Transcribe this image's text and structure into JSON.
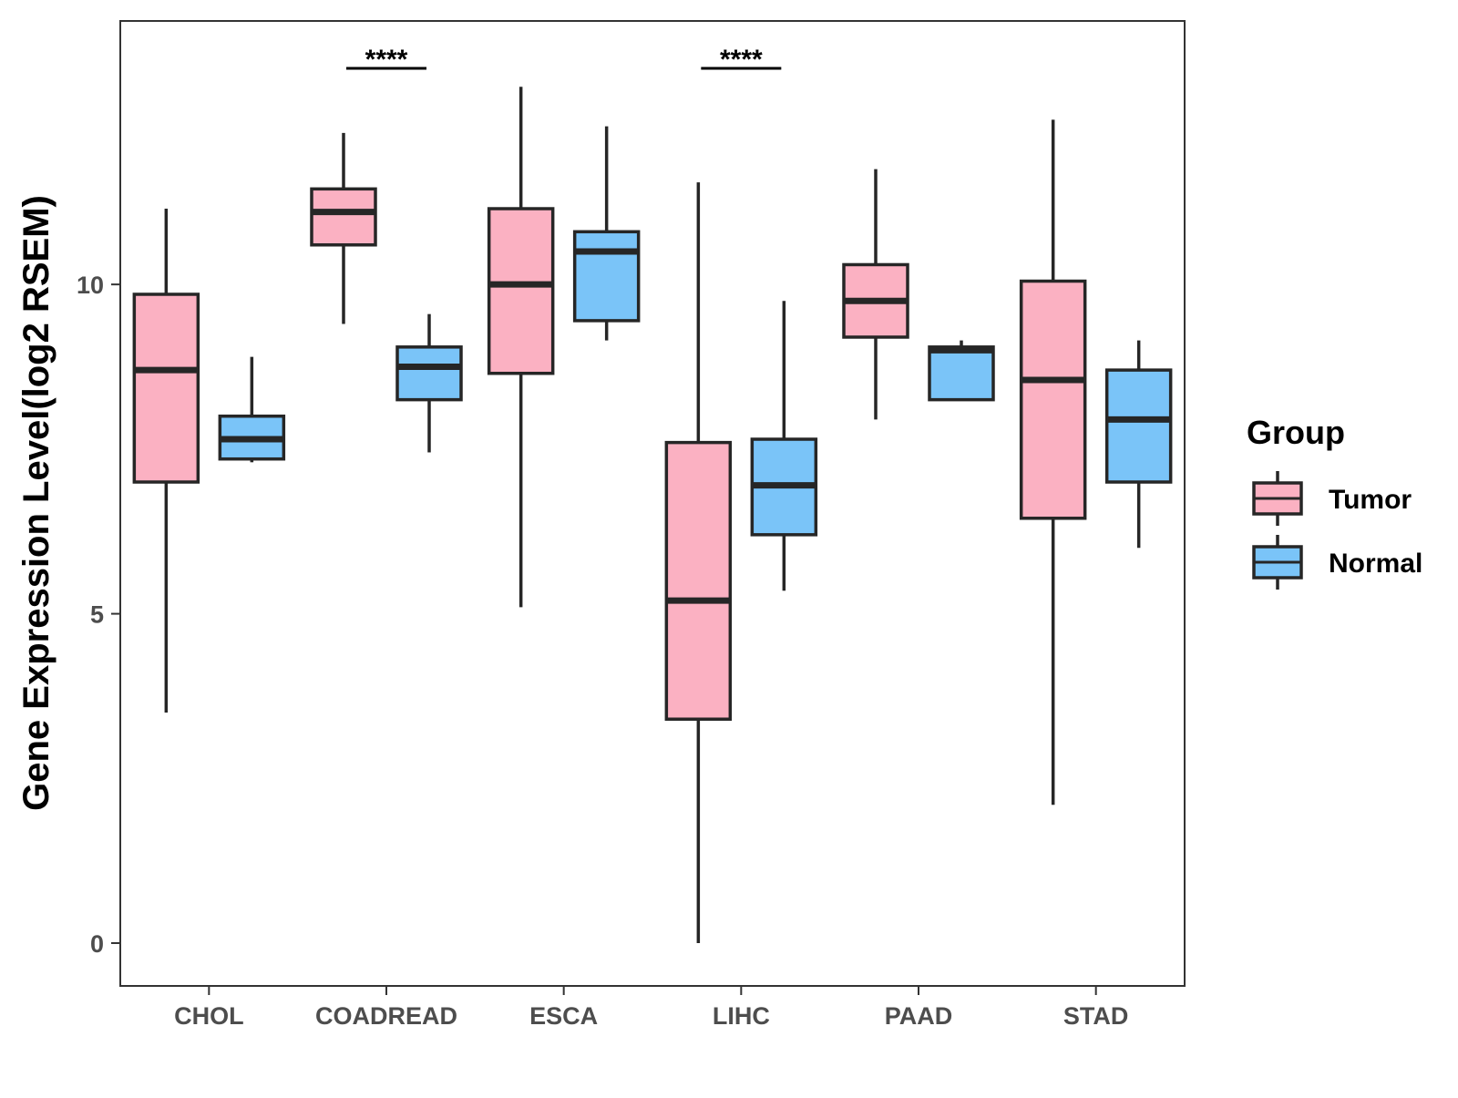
{
  "chart_data": {
    "type": "box",
    "title": "",
    "xlabel": "",
    "ylabel": "Gene Expression Level(log2 RSEM)",
    "ylim": [
      -0.65,
      14.0
    ],
    "yticks": [
      0,
      5,
      10
    ],
    "categories": [
      "CHOL",
      "COADREAD",
      "ESCA",
      "LIHC",
      "PAAD",
      "STAD"
    ],
    "legend": {
      "title": "Group",
      "position": "right",
      "entries": [
        {
          "name": "Tumor",
          "color": "#FBB1C2"
        },
        {
          "name": "Normal",
          "color": "#7AC4F8"
        }
      ]
    },
    "series": [
      {
        "name": "Tumor",
        "color": "#FBB1C2",
        "boxes": [
          {
            "category": "CHOL",
            "min": 3.5,
            "q1": 7.0,
            "median": 8.7,
            "q3": 9.85,
            "max": 11.15
          },
          {
            "category": "COADREAD",
            "min": 9.4,
            "q1": 10.6,
            "median": 11.1,
            "q3": 11.45,
            "max": 12.3
          },
          {
            "category": "ESCA",
            "min": 5.1,
            "q1": 8.65,
            "median": 10.0,
            "q3": 11.15,
            "max": 13.0
          },
          {
            "category": "LIHC",
            "min": 0.0,
            "q1": 3.4,
            "median": 5.2,
            "q3": 7.6,
            "max": 11.55
          },
          {
            "category": "PAAD",
            "min": 7.95,
            "q1": 9.2,
            "median": 9.75,
            "q3": 10.3,
            "max": 11.75
          },
          {
            "category": "STAD",
            "min": 2.1,
            "q1": 6.45,
            "median": 8.55,
            "q3": 10.05,
            "max": 12.5
          }
        ]
      },
      {
        "name": "Normal",
        "color": "#7AC4F8",
        "boxes": [
          {
            "category": "CHOL",
            "min": 7.3,
            "q1": 7.35,
            "median": 7.65,
            "q3": 8.0,
            "max": 8.9
          },
          {
            "category": "COADREAD",
            "min": 7.45,
            "q1": 8.25,
            "median": 8.75,
            "q3": 9.05,
            "max": 9.55
          },
          {
            "category": "ESCA",
            "min": 9.15,
            "q1": 9.45,
            "median": 10.5,
            "q3": 10.8,
            "max": 12.4
          },
          {
            "category": "LIHC",
            "min": 5.35,
            "q1": 6.2,
            "median": 6.95,
            "q3": 7.65,
            "max": 9.75
          },
          {
            "category": "PAAD",
            "min": 8.25,
            "q1": 8.25,
            "median": 9.0,
            "q3": 9.05,
            "max": 9.15
          },
          {
            "category": "STAD",
            "min": 6.0,
            "q1": 7.0,
            "median": 7.95,
            "q3": 8.7,
            "max": 9.15
          }
        ]
      }
    ],
    "significance": [
      {
        "category": "COADREAD",
        "label": "****"
      },
      {
        "category": "LIHC",
        "label": "****"
      }
    ]
  }
}
